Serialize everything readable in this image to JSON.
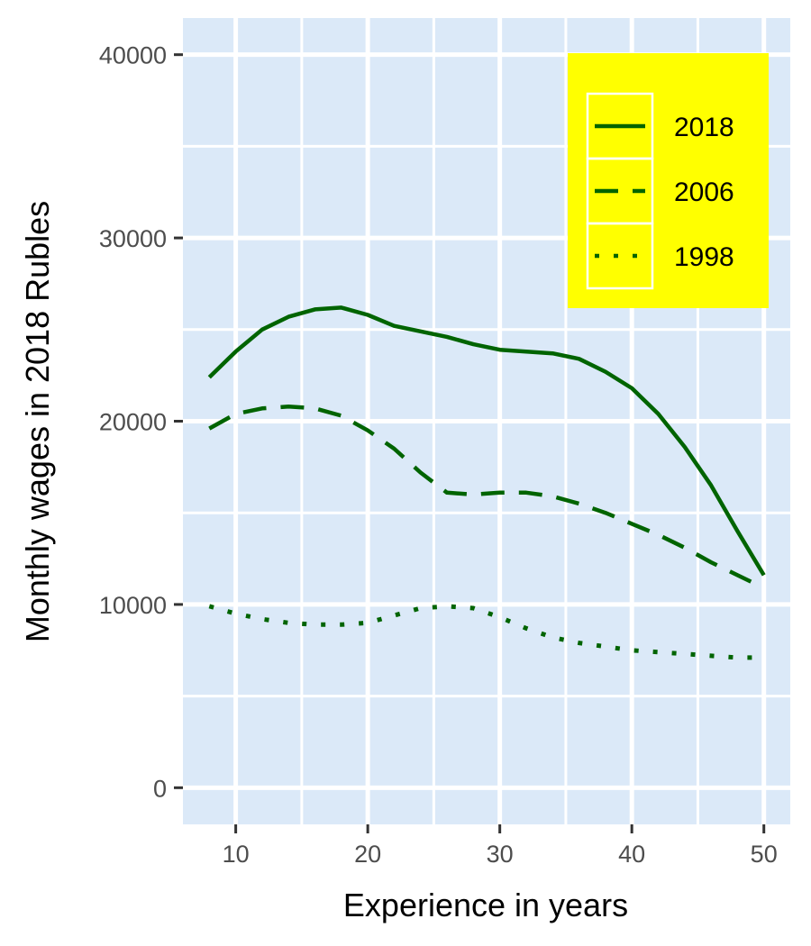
{
  "chart_data": {
    "type": "line",
    "title": "",
    "xlabel": "Experience in years",
    "ylabel": "Monthly wages in 2018 Rubles",
    "xlim": [
      6,
      52
    ],
    "ylim": [
      -2000,
      42000
    ],
    "x_ticks": [
      10,
      20,
      30,
      40,
      50
    ],
    "x_tick_labels": [
      "10",
      "20",
      "30",
      "40",
      "50"
    ],
    "y_ticks": [
      0,
      10000,
      20000,
      30000,
      40000
    ],
    "y_tick_labels": [
      "0",
      "10000",
      "20000",
      "30000",
      "40000"
    ],
    "grid": true,
    "legend_position": "top-right",
    "colors": {
      "panel": "#dbe9f8",
      "grid": "#ffffff",
      "line": "#006400",
      "legend_bg": "#ffff00",
      "legend_key_border": "#ffffff"
    },
    "series": [
      {
        "name": "2018",
        "linetype": "solid",
        "x": [
          8,
          10,
          12,
          14,
          16,
          18,
          20,
          22,
          24,
          26,
          28,
          30,
          32,
          34,
          36,
          38,
          40,
          42,
          44,
          46,
          48,
          50
        ],
        "values": [
          22400,
          23800,
          25000,
          25700,
          26100,
          26200,
          25800,
          25200,
          24900,
          24600,
          24200,
          23900,
          23800,
          23700,
          23400,
          22700,
          21800,
          20400,
          18600,
          16500,
          14000,
          11600
        ]
      },
      {
        "name": "2006",
        "linetype": "dashed",
        "x": [
          8,
          10,
          12,
          14,
          16,
          18,
          20,
          22,
          24,
          26,
          28,
          30,
          32,
          34,
          36,
          38,
          40,
          42,
          44,
          46,
          48,
          50
        ],
        "values": [
          19600,
          20400,
          20700,
          20800,
          20700,
          20300,
          19500,
          18500,
          17200,
          16100,
          16000,
          16100,
          16100,
          15900,
          15500,
          15000,
          14400,
          13800,
          13100,
          12300,
          11600,
          10900
        ]
      },
      {
        "name": "1998",
        "linetype": "dotted",
        "x": [
          8,
          10,
          12,
          14,
          16,
          18,
          20,
          22,
          24,
          26,
          28,
          30,
          32,
          34,
          36,
          38,
          40,
          42,
          44,
          46,
          48,
          50
        ],
        "values": [
          9900,
          9500,
          9200,
          9000,
          8900,
          8900,
          9000,
          9400,
          9800,
          9900,
          9800,
          9300,
          8700,
          8200,
          7900,
          7700,
          7500,
          7400,
          7300,
          7200,
          7100,
          7100
        ]
      }
    ]
  }
}
